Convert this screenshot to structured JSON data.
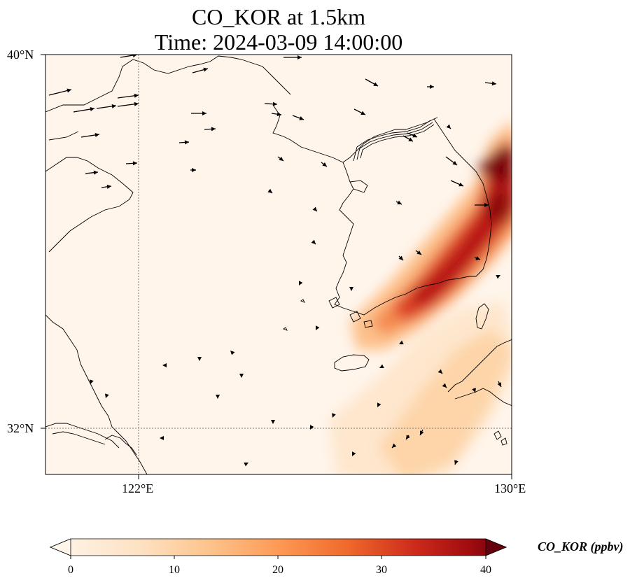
{
  "title": {
    "line1": "CO_KOR at 1.5km",
    "line2": "Time: 2024-03-09 14:00:00"
  },
  "map": {
    "lon_range": [
      118,
      130
    ],
    "lat_range": [
      31,
      40.2
    ],
    "gridlines": {
      "lon": [
        122
      ],
      "lat": [
        32
      ],
      "style": "dotted"
    },
    "lat_labels": [
      "40°N",
      "32°N"
    ],
    "lon_labels": [
      "122°E",
      "130°E"
    ],
    "background_color": "#fff5eb",
    "wind_vectors": "shown"
  },
  "colorbar": {
    "label": "CO_KOR (ppbv)",
    "ticks": [
      "0",
      "10",
      "20",
      "30",
      "40"
    ],
    "min": 0,
    "max": 40,
    "extend": "both",
    "colors": [
      "#fff5eb",
      "#fdd8b2",
      "#fda762",
      "#f16913",
      "#d13219",
      "#a50f15",
      "#67000d"
    ]
  }
}
